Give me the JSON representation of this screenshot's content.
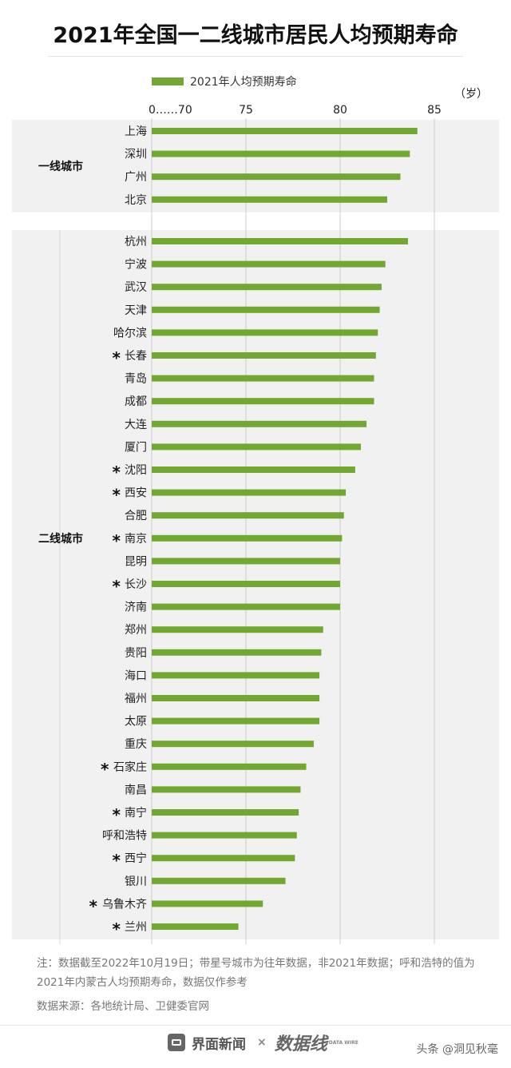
{
  "title": "2021年全国一二线城市居民人均预期寿命",
  "legend": "2021年人均预期寿命",
  "colors": {
    "bar": "#72a832",
    "panel": "#f1f1f1",
    "grid": "#cccccc"
  },
  "chart_data": {
    "type": "bar",
    "orientation": "horizontal",
    "title": "2021年全国一二线城市居民人均预期寿命",
    "series": [
      {
        "name": "2021年人均预期寿命"
      }
    ],
    "unit": "（岁）",
    "axis_break_label": "0……70",
    "xlim": [
      70,
      85
    ],
    "xticks": [
      75,
      80,
      85
    ],
    "groups": [
      {
        "label": "一线城市",
        "items": [
          {
            "city": "上海",
            "value": 84.1,
            "star": false
          },
          {
            "city": "深圳",
            "value": 83.7,
            "star": false
          },
          {
            "city": "广州",
            "value": 83.2,
            "star": false
          },
          {
            "city": "北京",
            "value": 82.5,
            "star": false
          }
        ]
      },
      {
        "label": "二线城市",
        "items": [
          {
            "city": "杭州",
            "value": 83.6,
            "star": false
          },
          {
            "city": "宁波",
            "value": 82.4,
            "star": false
          },
          {
            "city": "武汉",
            "value": 82.2,
            "star": false
          },
          {
            "city": "天津",
            "value": 82.1,
            "star": false
          },
          {
            "city": "哈尔滨",
            "value": 82.0,
            "star": false
          },
          {
            "city": "长春",
            "value": 81.9,
            "star": true
          },
          {
            "city": "青岛",
            "value": 81.8,
            "star": false
          },
          {
            "city": "成都",
            "value": 81.8,
            "star": false
          },
          {
            "city": "大连",
            "value": 81.4,
            "star": false
          },
          {
            "city": "厦门",
            "value": 81.1,
            "star": false
          },
          {
            "city": "沈阳",
            "value": 80.8,
            "star": true
          },
          {
            "city": "西安",
            "value": 80.3,
            "star": true
          },
          {
            "city": "合肥",
            "value": 80.2,
            "star": false
          },
          {
            "city": "南京",
            "value": 80.1,
            "star": true
          },
          {
            "city": "昆明",
            "value": 80.0,
            "star": false
          },
          {
            "city": "长沙",
            "value": 80.0,
            "star": true
          },
          {
            "city": "济南",
            "value": 80.0,
            "star": false
          },
          {
            "city": "郑州",
            "value": 79.1,
            "star": false
          },
          {
            "city": "贵阳",
            "value": 79.0,
            "star": false
          },
          {
            "city": "海口",
            "value": 78.9,
            "star": false
          },
          {
            "city": "福州",
            "value": 78.9,
            "star": false
          },
          {
            "city": "太原",
            "value": 78.9,
            "star": false
          },
          {
            "city": "重庆",
            "value": 78.6,
            "star": false
          },
          {
            "city": "石家庄",
            "value": 78.2,
            "star": true
          },
          {
            "city": "南昌",
            "value": 77.9,
            "star": false
          },
          {
            "city": "南宁",
            "value": 77.8,
            "star": true
          },
          {
            "city": "呼和浩特",
            "value": 77.7,
            "star": false
          },
          {
            "city": "西宁",
            "value": 77.6,
            "star": true
          },
          {
            "city": "银川",
            "value": 77.1,
            "star": false
          },
          {
            "city": "乌鲁木齐",
            "value": 75.9,
            "star": true
          },
          {
            "city": "兰州",
            "value": 74.6,
            "star": true
          }
        ]
      }
    ]
  },
  "note": "注：数据截至2022年10月19日；带星号城市为往年数据，非2021年数据；呼和浩特的值为2021年内蒙古人均预期寿命，数据仅作参考",
  "source": "数据来源：各地统计局、卫健委官网",
  "footer": {
    "brand": "界面新闻",
    "separator": "×",
    "logo": "数据线",
    "logo_sub": "DATA WIRE",
    "credit": "头条 @洞见秋毫"
  }
}
